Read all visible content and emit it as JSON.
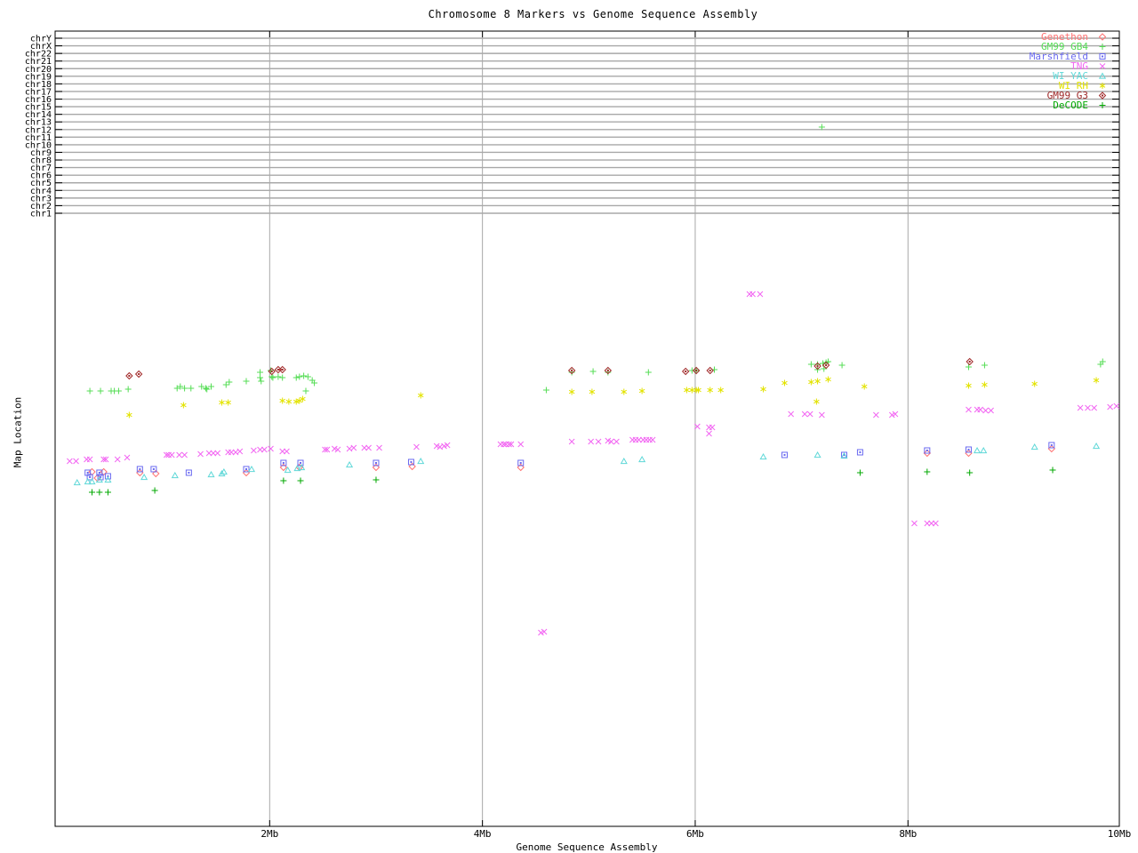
{
  "chart_data": {
    "type": "scatter",
    "title": "Chromosome 8 Markers vs Genome Sequence Assembly",
    "xlabel": "Genome Sequence Assembly",
    "ylabel": "Map Location",
    "x_unit": "Mb",
    "x_range_mb": [
      0,
      10
    ],
    "x_ticks": [
      {
        "label": "2Mb",
        "mb": 2
      },
      {
        "label": "4Mb",
        "mb": 4
      },
      {
        "label": "6Mb",
        "mb": 6
      },
      {
        "label": "8Mb",
        "mb": 8
      },
      {
        "label": "10Mb",
        "mb": 10
      }
    ],
    "grid": "vertical gray lines at 2Mb steps",
    "legend_position": "top-right",
    "chromosomes": [
      "chrY",
      "chrX",
      "chr22",
      "chr21",
      "chr20",
      "chr19",
      "chr18",
      "chr17",
      "chr16",
      "chr15",
      "chr14",
      "chr13",
      "chr12",
      "chr11",
      "chr10",
      "chr9",
      "chr8",
      "chr7",
      "chr6",
      "chr5",
      "chr4",
      "chr3",
      "chr2",
      "chr1"
    ],
    "y_note": "y values are screen-relative map locations (no numeric y scale in original); lower y = higher on axis",
    "series": [
      {
        "name": "Genethon",
        "color": "#ff7272",
        "marker": "open-diamond",
        "points": [
          [
            0.33,
            531
          ],
          [
            0.44,
            531
          ],
          [
            0.38,
            538
          ],
          [
            0.78,
            532
          ],
          [
            0.93,
            533
          ],
          [
            1.78,
            532
          ],
          [
            2.13,
            526
          ],
          [
            2.28,
            526
          ],
          [
            3.0,
            526
          ],
          [
            3.34,
            525
          ],
          [
            4.36,
            526
          ],
          [
            8.18,
            510
          ],
          [
            8.57,
            510
          ],
          [
            9.35,
            505
          ]
        ]
      },
      {
        "name": "GM99 GB4",
        "color": "#55dd55",
        "marker": "plus",
        "points": [
          [
            0.31,
            440
          ],
          [
            0.41,
            440
          ],
          [
            0.51,
            440
          ],
          [
            0.54,
            440
          ],
          [
            0.58,
            440
          ],
          [
            0.67,
            438
          ],
          [
            1.13,
            437
          ],
          [
            1.16,
            435
          ],
          [
            1.2,
            437
          ],
          [
            1.26,
            437
          ],
          [
            1.36,
            435
          ],
          [
            1.4,
            437
          ],
          [
            1.41,
            438
          ],
          [
            1.45,
            435
          ],
          [
            1.59,
            433
          ],
          [
            1.62,
            430
          ],
          [
            1.78,
            429
          ],
          [
            1.91,
            425
          ],
          [
            1.91,
            419
          ],
          [
            1.92,
            429
          ],
          [
            2.01,
            417
          ],
          [
            2.02,
            424
          ],
          [
            2.03,
            425
          ],
          [
            2.08,
            424
          ],
          [
            2.12,
            425
          ],
          [
            2.25,
            425
          ],
          [
            2.28,
            424
          ],
          [
            2.32,
            423
          ],
          [
            2.36,
            424
          ],
          [
            2.4,
            428
          ],
          [
            2.42,
            431
          ],
          [
            2.34,
            440
          ],
          [
            4.6,
            439
          ],
          [
            4.84,
            419
          ],
          [
            5.04,
            418
          ],
          [
            5.18,
            419
          ],
          [
            5.56,
            419
          ],
          [
            5.97,
            417
          ],
          [
            6.01,
            417
          ],
          [
            6.18,
            416
          ],
          [
            7.09,
            410
          ],
          [
            7.15,
            410
          ],
          [
            7.2,
            409
          ],
          [
            7.23,
            408
          ],
          [
            7.25,
            407
          ],
          [
            7.15,
            416
          ],
          [
            7.21,
            415
          ],
          [
            7.38,
            411
          ],
          [
            8.57,
            413
          ],
          [
            8.72,
            411
          ],
          [
            9.81,
            410
          ],
          [
            9.83,
            407
          ],
          [
            7.19,
            143
          ]
        ]
      },
      {
        "name": "Marshfield",
        "color": "#6a6af0",
        "marker": "square-dot",
        "points": [
          [
            0.29,
            532
          ],
          [
            0.4,
            532
          ],
          [
            0.31,
            537
          ],
          [
            0.41,
            537
          ],
          [
            0.48,
            536
          ],
          [
            0.78,
            528
          ],
          [
            0.91,
            528
          ],
          [
            1.24,
            532
          ],
          [
            1.78,
            528
          ],
          [
            2.13,
            521
          ],
          [
            2.29,
            521
          ],
          [
            3.0,
            521
          ],
          [
            3.33,
            520
          ],
          [
            4.36,
            521
          ],
          [
            6.84,
            512
          ],
          [
            7.4,
            512
          ],
          [
            7.55,
            509
          ],
          [
            8.18,
            507
          ],
          [
            8.57,
            506
          ],
          [
            9.35,
            501
          ]
        ]
      },
      {
        "name": "TNG",
        "color": "#f266f2",
        "marker": "cross",
        "points": [
          [
            0.12,
            519
          ],
          [
            0.18,
            519
          ],
          [
            0.28,
            517
          ],
          [
            0.31,
            517
          ],
          [
            0.44,
            517
          ],
          [
            0.46,
            517
          ],
          [
            0.57,
            517
          ],
          [
            0.66,
            515
          ],
          [
            1.03,
            512
          ],
          [
            1.05,
            512
          ],
          [
            1.08,
            512
          ],
          [
            1.15,
            512
          ],
          [
            1.2,
            512
          ],
          [
            1.35,
            511
          ],
          [
            1.43,
            510
          ],
          [
            1.47,
            510
          ],
          [
            1.51,
            510
          ],
          [
            1.61,
            509
          ],
          [
            1.64,
            509
          ],
          [
            1.68,
            509
          ],
          [
            1.72,
            508
          ],
          [
            1.85,
            507
          ],
          [
            1.91,
            506
          ],
          [
            1.95,
            506
          ],
          [
            2.01,
            505
          ],
          [
            2.12,
            508
          ],
          [
            2.16,
            508
          ],
          [
            2.52,
            506
          ],
          [
            2.54,
            506
          ],
          [
            2.61,
            505
          ],
          [
            2.64,
            506
          ],
          [
            2.75,
            505
          ],
          [
            2.79,
            504
          ],
          [
            2.89,
            504
          ],
          [
            2.93,
            504
          ],
          [
            3.03,
            504
          ],
          [
            3.38,
            503
          ],
          [
            3.57,
            502
          ],
          [
            3.6,
            503
          ],
          [
            3.64,
            502
          ],
          [
            3.67,
            501
          ],
          [
            4.17,
            500
          ],
          [
            4.2,
            500
          ],
          [
            4.22,
            500
          ],
          [
            4.25,
            500
          ],
          [
            4.27,
            500
          ],
          [
            4.36,
            500
          ],
          [
            4.84,
            497
          ],
          [
            5.02,
            497
          ],
          [
            5.09,
            497
          ],
          [
            5.18,
            496
          ],
          [
            5.21,
            497
          ],
          [
            5.26,
            497
          ],
          [
            5.41,
            495
          ],
          [
            5.44,
            495
          ],
          [
            5.47,
            495
          ],
          [
            5.51,
            495
          ],
          [
            5.54,
            495
          ],
          [
            5.57,
            495
          ],
          [
            5.6,
            495
          ],
          [
            6.02,
            480
          ],
          [
            6.13,
            481
          ],
          [
            6.16,
            481
          ],
          [
            6.13,
            488
          ],
          [
            6.9,
            466
          ],
          [
            7.03,
            466
          ],
          [
            7.08,
            466
          ],
          [
            7.19,
            467
          ],
          [
            7.7,
            467
          ],
          [
            7.85,
            467
          ],
          [
            7.88,
            466
          ],
          [
            8.57,
            461
          ],
          [
            8.65,
            461
          ],
          [
            8.68,
            461
          ],
          [
            8.73,
            462
          ],
          [
            8.78,
            462
          ],
          [
            9.62,
            459
          ],
          [
            9.69,
            459
          ],
          [
            9.75,
            459
          ],
          [
            9.9,
            458
          ],
          [
            9.96,
            457
          ],
          [
            6.51,
            331
          ],
          [
            6.54,
            331
          ],
          [
            6.61,
            331
          ],
          [
            8.06,
            589
          ],
          [
            8.18,
            589
          ],
          [
            8.22,
            589
          ],
          [
            8.26,
            589
          ],
          [
            4.55,
            712
          ],
          [
            4.58,
            711
          ]
        ]
      },
      {
        "name": "WI YAC",
        "color": "#5fd8d8",
        "marker": "open-triangle",
        "points": [
          [
            0.19,
            543
          ],
          [
            0.29,
            542
          ],
          [
            0.33,
            542
          ],
          [
            0.4,
            540
          ],
          [
            0.48,
            540
          ],
          [
            0.82,
            537
          ],
          [
            1.11,
            535
          ],
          [
            1.45,
            534
          ],
          [
            1.55,
            533
          ],
          [
            1.57,
            531
          ],
          [
            1.83,
            528
          ],
          [
            2.17,
            529
          ],
          [
            2.26,
            527
          ],
          [
            2.3,
            526
          ],
          [
            2.75,
            523
          ],
          [
            3.42,
            519
          ],
          [
            5.33,
            519
          ],
          [
            5.5,
            517
          ],
          [
            6.64,
            514
          ],
          [
            7.15,
            512
          ],
          [
            7.4,
            513
          ],
          [
            8.65,
            507
          ],
          [
            8.71,
            507
          ],
          [
            9.19,
            503
          ],
          [
            9.77,
            502
          ]
        ]
      },
      {
        "name": "WI RH",
        "color": "#e3e300",
        "marker": "star",
        "points": [
          [
            0.68,
            467
          ],
          [
            1.19,
            456
          ],
          [
            1.55,
            453
          ],
          [
            1.61,
            453
          ],
          [
            2.12,
            451
          ],
          [
            2.18,
            452
          ],
          [
            2.25,
            452
          ],
          [
            2.28,
            451
          ],
          [
            2.31,
            449
          ],
          [
            3.42,
            445
          ],
          [
            4.84,
            441
          ],
          [
            5.03,
            441
          ],
          [
            5.33,
            441
          ],
          [
            5.5,
            440
          ],
          [
            5.92,
            439
          ],
          [
            5.97,
            439
          ],
          [
            6.01,
            439
          ],
          [
            6.03,
            439
          ],
          [
            6.14,
            439
          ],
          [
            6.24,
            439
          ],
          [
            6.64,
            438
          ],
          [
            6.84,
            431
          ],
          [
            7.09,
            430
          ],
          [
            7.15,
            429
          ],
          [
            7.25,
            427
          ],
          [
            7.14,
            452
          ],
          [
            7.59,
            435
          ],
          [
            8.57,
            434
          ],
          [
            8.72,
            433
          ],
          [
            9.19,
            432
          ],
          [
            9.77,
            428
          ]
        ]
      },
      {
        "name": "GM99 G3",
        "color": "#a02828",
        "marker": "dot-diamond",
        "points": [
          [
            0.68,
            423
          ],
          [
            0.77,
            421
          ],
          [
            2.02,
            418
          ],
          [
            2.08,
            416
          ],
          [
            2.12,
            416
          ],
          [
            4.84,
            417
          ],
          [
            5.18,
            417
          ],
          [
            5.91,
            418
          ],
          [
            6.01,
            417
          ],
          [
            6.14,
            417
          ],
          [
            7.15,
            412
          ],
          [
            7.23,
            411
          ],
          [
            8.58,
            407
          ]
        ]
      },
      {
        "name": "DeCODE",
        "color": "#00a800",
        "marker": "plus",
        "points": [
          [
            0.33,
            554
          ],
          [
            0.4,
            554
          ],
          [
            0.48,
            554
          ],
          [
            0.92,
            552
          ],
          [
            2.13,
            541
          ],
          [
            2.29,
            541
          ],
          [
            3.0,
            540
          ],
          [
            7.55,
            532
          ],
          [
            8.18,
            531
          ],
          [
            8.58,
            532
          ],
          [
            9.36,
            529
          ]
        ]
      }
    ]
  }
}
